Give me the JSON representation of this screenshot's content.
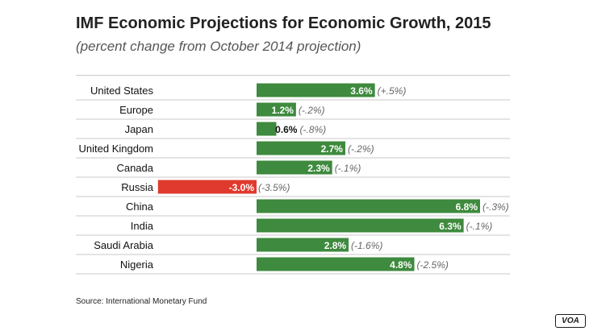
{
  "title": "IMF Economic Projections for Economic Growth, 2015",
  "subtitle": "(percent change from October 2014 projection)",
  "source": "Source: International Monetary Fund",
  "logo": "VOA",
  "colors": {
    "positive": "#3e8a3e",
    "negative": "#e03a2e",
    "row_line": "#c8c8c8"
  },
  "chart_data": {
    "type": "bar",
    "orientation": "horizontal",
    "categories": [
      "United States",
      "Europe",
      "Japan",
      "United Kingdom",
      "Canada",
      "Russia",
      "China",
      "India",
      "Saudi Arabia",
      "Nigeria"
    ],
    "values": [
      3.6,
      1.2,
      0.6,
      2.7,
      2.3,
      -3.0,
      6.8,
      6.3,
      2.8,
      4.8
    ],
    "value_labels": [
      "3.6%",
      "1.2%",
      "0.6%",
      "2.7%",
      "2.3%",
      "-3.0%",
      "6.8%",
      "6.3%",
      "2.8%",
      "4.8%"
    ],
    "change_labels": [
      "(+.5%)",
      "(-.2%)",
      "(-.8%)",
      "(-.2%)",
      "(-.1%)",
      "(-3.5%)",
      "(-.3%)",
      "(-.1%)",
      "(-1.6%)",
      "(-2.5%)"
    ],
    "xlim": [
      -3.0,
      6.8
    ],
    "grid": false,
    "legend": "none"
  }
}
